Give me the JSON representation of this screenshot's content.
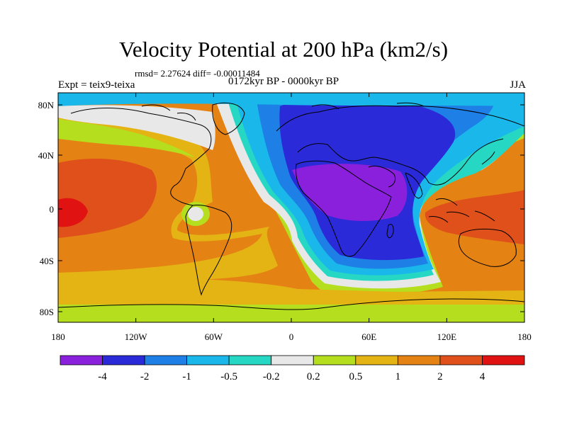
{
  "title": "Velocity Potential at 200 hPa (km2/s)",
  "stats": "rmsd= 2.27624 diff= -0.00011484",
  "period": "0172kyr BP - 0000kyr BP",
  "experiment": "Expt = teix9-teixa",
  "season": "JJA",
  "lon_ticks": [
    "180",
    "120W",
    "60W",
    "0",
    "60E",
    "120E",
    "180"
  ],
  "lat_ticks": [
    "80N",
    "40N",
    "0",
    "40S",
    "80S"
  ],
  "colorbar": {
    "colors": [
      "#8a1fdc",
      "#2a2ad8",
      "#1e7fe6",
      "#1ab8ea",
      "#26d8c4",
      "#e8e8e8",
      "#b4de1e",
      "#e4b414",
      "#e48214",
      "#e0501a",
      "#e01212"
    ],
    "labels": [
      "-4",
      "-2",
      "-1",
      "-0.5",
      "-0.2",
      "0.2",
      "0.5",
      "1",
      "2",
      "4"
    ]
  },
  "field_colors": {
    "deep_negative": "#8a1fdc",
    "strong_negative": "#2a2ad8",
    "negative": "#1e7fe6",
    "moderate_negative": "#1ab8ea",
    "weak_negative": "#26d8c4",
    "near_zero": "#e8e8e8",
    "weak_positive": "#b4de1e",
    "moderate_positive": "#e4b414",
    "positive": "#e48214",
    "strong_positive": "#e0501a",
    "max_positive": "#e01212"
  }
}
